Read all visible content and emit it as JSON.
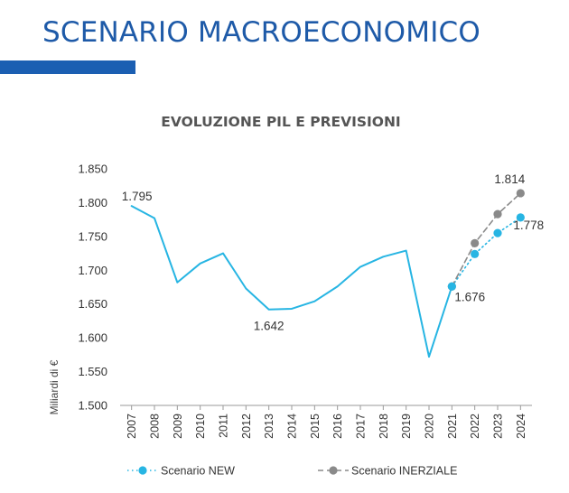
{
  "page": {
    "title": "SCENARIO MACROECONOMICO",
    "accent_color": "#1b5fb2"
  },
  "chart_data": {
    "type": "line",
    "title": "EVOLUZIONE PIL E PREVISIONI",
    "xlabel": "",
    "ylabel": "Miliardi di €",
    "ylim": [
      1500,
      1850
    ],
    "y_ticks": [
      "1.500",
      "1.550",
      "1.600",
      "1.650",
      "1.700",
      "1.750",
      "1.800",
      "1.850"
    ],
    "y_tick_values": [
      1500,
      1550,
      1600,
      1650,
      1700,
      1750,
      1800,
      1850
    ],
    "categories": [
      "2007",
      "2008",
      "2009",
      "2010",
      "2011",
      "2012",
      "2013",
      "2014",
      "2015",
      "2016",
      "2017",
      "2018",
      "2019",
      "2020",
      "2021",
      "2022",
      "2023",
      "2024"
    ],
    "grid": false,
    "legend_position": "bottom",
    "series": [
      {
        "name": "",
        "style": "solid",
        "color": "#27b5e3",
        "x": [
          "2007",
          "2008",
          "2009",
          "2010",
          "2011",
          "2012",
          "2013",
          "2014",
          "2015",
          "2016",
          "2017",
          "2018",
          "2019",
          "2020",
          "2021"
        ],
        "values": [
          1795,
          1777,
          1682,
          1710,
          1725,
          1673,
          1642,
          1643,
          1654,
          1676,
          1705,
          1720,
          1729,
          1572,
          1676
        ]
      },
      {
        "name": "Scenario NEW",
        "style": "dotted",
        "color": "#27b5e3",
        "x": [
          "2021",
          "2022",
          "2023",
          "2024"
        ],
        "values": [
          1676,
          1724,
          1755,
          1778
        ]
      },
      {
        "name": "Scenario INERZIALE",
        "style": "dashed",
        "color": "#8a8a8a",
        "x": [
          "2021",
          "2022",
          "2023",
          "2024"
        ],
        "values": [
          1676,
          1740,
          1783,
          1814
        ]
      }
    ],
    "annotations": [
      {
        "label": "1.795",
        "x": "2007",
        "value": 1795
      },
      {
        "label": "1.642",
        "x": "2013",
        "value": 1642
      },
      {
        "label": "1.676",
        "x": "2021",
        "value": 1676
      },
      {
        "label": "1.814",
        "x": "2024",
        "value": 1814
      },
      {
        "label": "1.778",
        "x": "2024",
        "value": 1778
      }
    ]
  }
}
